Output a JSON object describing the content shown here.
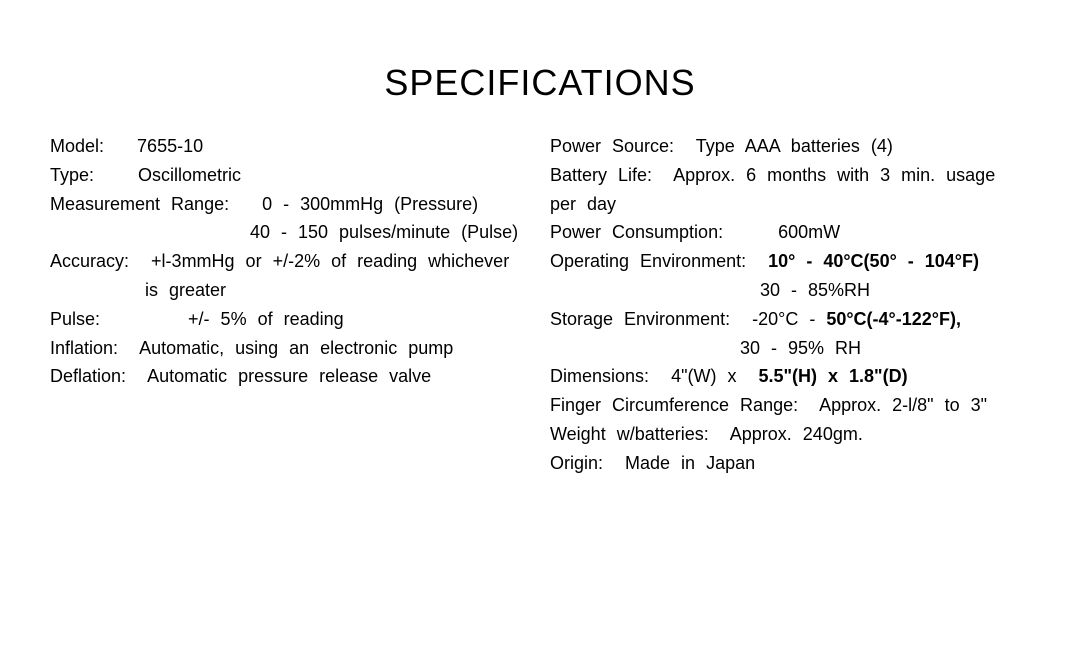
{
  "title": "SPECIFICATIONS",
  "left": {
    "model_label": "Model:",
    "model_value": "7655-10",
    "type_label": "Type:",
    "type_value": "Oscillometric",
    "meas_range_label": "Measurement  Range:",
    "meas_range_pressure": "0  -  300mmHg  (Pressure)",
    "meas_range_pulse": "40  -  150 pulses/minute  (Pulse)",
    "accuracy_label": "Accuracy:",
    "accuracy_value_1": "+l-3mmHg    or  +/-2%  of  reading  whichever",
    "accuracy_value_2": "is  greater",
    "pulse_label": "Pulse:",
    "pulse_value": "+/-  5% of reading",
    "inflation_label": "Inflation:",
    "inflation_value": "Automatic,  using  an  electronic  pump",
    "deflation_label": "Deflation:",
    "deflation_value": "Automatic  pressure  release  valve"
  },
  "right": {
    "power_source_label": "Power  Source:",
    "power_source_value": "Type  AAA  batteries  (4)",
    "battery_life_label": "Battery Life:",
    "battery_life_value": "Approx.  6  months with 3  min.  usage  per  day",
    "power_cons_label": "Power   Consumption:",
    "power_cons_value": "600mW",
    "op_env_label": "Operating Environment:",
    "op_env_temp": "10°  -  40°C(50°  -  104°F)",
    "op_env_rh": "30 - 85%RH",
    "storage_label": "Storage  Environment:",
    "storage_temp": "-20°C  -  50°C(-4°-122°F),",
    "storage_rh": "30  -  95%  RH",
    "dim_label": "Dimensions:",
    "dim_value_1": "4\"(W)  x",
    "dim_value_2": "5.5\"(H) x  1.8\"(D)",
    "finger_label": "Finger  Circumference  Range:",
    "finger_value": "Approx.  2-l/8\"  to  3\"",
    "weight_label": "Weight  w/batteries:",
    "weight_value": "Approx.  240gm.",
    "origin_label": "Origin:",
    "origin_value": "Made  in  Japan"
  }
}
